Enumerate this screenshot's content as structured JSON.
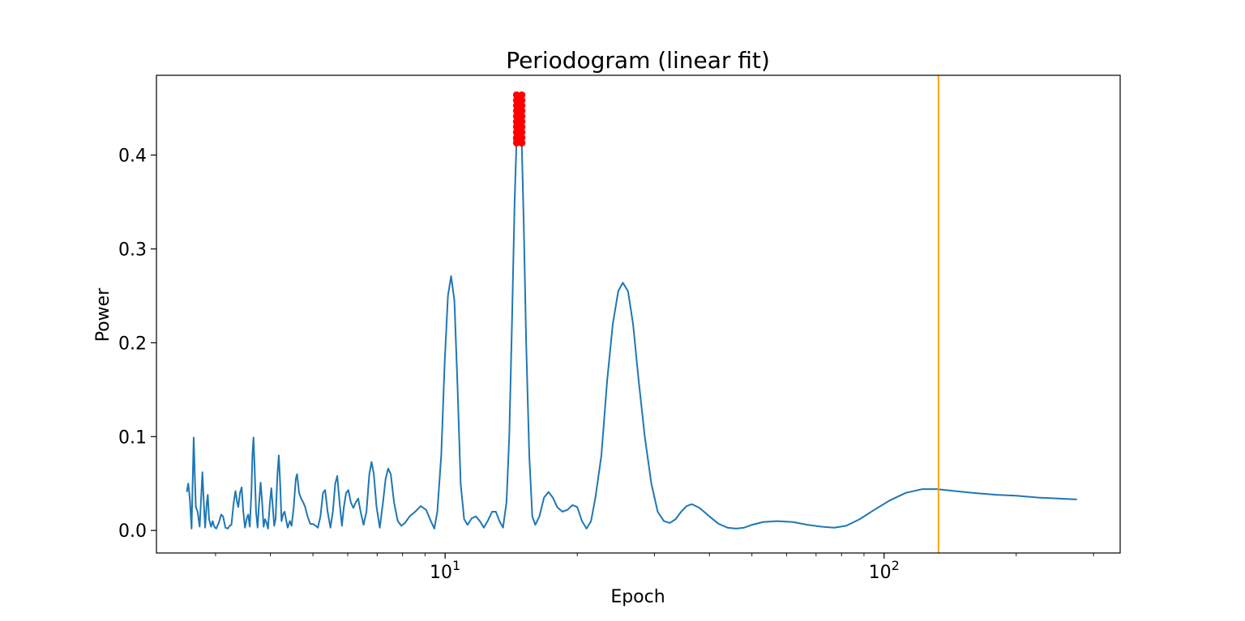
{
  "chart_data": {
    "type": "line",
    "title": "Periodogram (linear fit)",
    "xlabel": "Epoch",
    "ylabel": "Power",
    "xscale": "log",
    "xlim": [
      2.2,
      345
    ],
    "ylim": [
      -0.024,
      0.485
    ],
    "grid": false,
    "legend": "none",
    "x_ticks": [
      {
        "value": 10,
        "base": "10",
        "exp": "1"
      },
      {
        "value": 100,
        "base": "10",
        "exp": "2"
      }
    ],
    "y_ticks": [
      {
        "value": 0.0,
        "label": "0.0"
      },
      {
        "value": 0.1,
        "label": "0.1"
      },
      {
        "value": 0.2,
        "label": "0.2"
      },
      {
        "value": 0.3,
        "label": "0.3"
      },
      {
        "value": 0.4,
        "label": "0.4"
      }
    ],
    "series": [
      {
        "color": "#1f77b4",
        "points": [
          [
            2.58,
            0.041
          ],
          [
            2.6,
            0.05
          ],
          [
            2.62,
            0.035
          ],
          [
            2.645,
            0.002
          ],
          [
            2.66,
            0.05
          ],
          [
            2.675,
            0.099
          ],
          [
            2.69,
            0.06
          ],
          [
            2.705,
            0.025
          ],
          [
            2.73,
            0.02
          ],
          [
            2.76,
            0.004
          ],
          [
            2.785,
            0.04
          ],
          [
            2.8,
            0.062
          ],
          [
            2.82,
            0.03
          ],
          [
            2.84,
            0.003
          ],
          [
            2.865,
            0.03
          ],
          [
            2.88,
            0.038
          ],
          [
            2.9,
            0.012
          ],
          [
            2.93,
            0.004
          ],
          [
            2.955,
            0.01
          ],
          [
            2.98,
            0.004
          ],
          [
            3.01,
            0.002
          ],
          [
            3.05,
            0.008
          ],
          [
            3.09,
            0.017
          ],
          [
            3.12,
            0.015
          ],
          [
            3.16,
            0.003
          ],
          [
            3.2,
            0.002
          ],
          [
            3.23,
            0.005
          ],
          [
            3.26,
            0.006
          ],
          [
            3.3,
            0.03
          ],
          [
            3.33,
            0.042
          ],
          [
            3.36,
            0.03
          ],
          [
            3.38,
            0.025
          ],
          [
            3.41,
            0.04
          ],
          [
            3.44,
            0.046
          ],
          [
            3.47,
            0.02
          ],
          [
            3.5,
            0.003
          ],
          [
            3.53,
            0.012
          ],
          [
            3.56,
            0.017
          ],
          [
            3.59,
            0.004
          ],
          [
            3.62,
            0.04
          ],
          [
            3.64,
            0.08
          ],
          [
            3.66,
            0.099
          ],
          [
            3.68,
            0.07
          ],
          [
            3.71,
            0.02
          ],
          [
            3.74,
            0.003
          ],
          [
            3.77,
            0.03
          ],
          [
            3.8,
            0.051
          ],
          [
            3.83,
            0.03
          ],
          [
            3.86,
            0.004
          ],
          [
            3.89,
            0.012
          ],
          [
            3.92,
            0.008
          ],
          [
            3.95,
            0.002
          ],
          [
            3.99,
            0.03
          ],
          [
            4.02,
            0.045
          ],
          [
            4.05,
            0.025
          ],
          [
            4.08,
            0.005
          ],
          [
            4.11,
            0.012
          ],
          [
            4.15,
            0.06
          ],
          [
            4.18,
            0.08
          ],
          [
            4.21,
            0.05
          ],
          [
            4.24,
            0.01
          ],
          [
            4.28,
            0.018
          ],
          [
            4.31,
            0.02
          ],
          [
            4.34,
            0.012
          ],
          [
            4.38,
            0.003
          ],
          [
            4.43,
            0.01
          ],
          [
            4.47,
            0.005
          ],
          [
            4.52,
            0.025
          ],
          [
            4.57,
            0.055
          ],
          [
            4.6,
            0.06
          ],
          [
            4.65,
            0.04
          ],
          [
            4.7,
            0.034
          ],
          [
            4.75,
            0.03
          ],
          [
            4.8,
            0.025
          ],
          [
            4.86,
            0.015
          ],
          [
            4.93,
            0.007
          ],
          [
            5.0,
            0.007
          ],
          [
            5.07,
            0.005
          ],
          [
            5.13,
            0.003
          ],
          [
            5.2,
            0.015
          ],
          [
            5.27,
            0.04
          ],
          [
            5.33,
            0.043
          ],
          [
            5.4,
            0.02
          ],
          [
            5.48,
            0.003
          ],
          [
            5.55,
            0.02
          ],
          [
            5.62,
            0.05
          ],
          [
            5.68,
            0.058
          ],
          [
            5.75,
            0.03
          ],
          [
            5.82,
            0.005
          ],
          [
            5.88,
            0.025
          ],
          [
            5.95,
            0.04
          ],
          [
            6.02,
            0.043
          ],
          [
            6.1,
            0.03
          ],
          [
            6.18,
            0.024
          ],
          [
            6.26,
            0.03
          ],
          [
            6.34,
            0.034
          ],
          [
            6.42,
            0.02
          ],
          [
            6.52,
            0.006
          ],
          [
            6.62,
            0.02
          ],
          [
            6.72,
            0.06
          ],
          [
            6.8,
            0.073
          ],
          [
            6.88,
            0.06
          ],
          [
            6.98,
            0.025
          ],
          [
            7.1,
            0.003
          ],
          [
            7.22,
            0.03
          ],
          [
            7.32,
            0.055
          ],
          [
            7.42,
            0.066
          ],
          [
            7.52,
            0.06
          ],
          [
            7.65,
            0.03
          ],
          [
            7.8,
            0.01
          ],
          [
            7.95,
            0.005
          ],
          [
            8.1,
            0.008
          ],
          [
            8.3,
            0.015
          ],
          [
            8.55,
            0.02
          ],
          [
            8.8,
            0.026
          ],
          [
            9.05,
            0.022
          ],
          [
            9.28,
            0.01
          ],
          [
            9.45,
            0.002
          ],
          [
            9.6,
            0.02
          ],
          [
            9.8,
            0.08
          ],
          [
            9.98,
            0.18
          ],
          [
            10.15,
            0.25
          ],
          [
            10.32,
            0.271
          ],
          [
            10.5,
            0.245
          ],
          [
            10.68,
            0.15
          ],
          [
            10.85,
            0.05
          ],
          [
            11.05,
            0.012
          ],
          [
            11.25,
            0.006
          ],
          [
            11.5,
            0.013
          ],
          [
            11.75,
            0.015
          ],
          [
            12.0,
            0.01
          ],
          [
            12.25,
            0.003
          ],
          [
            12.5,
            0.01
          ],
          [
            12.8,
            0.02
          ],
          [
            13.05,
            0.02
          ],
          [
            13.3,
            0.01
          ],
          [
            13.55,
            0.003
          ],
          [
            13.8,
            0.03
          ],
          [
            14.0,
            0.1
          ],
          [
            14.2,
            0.22
          ],
          [
            14.4,
            0.35
          ],
          [
            14.6,
            0.44
          ],
          [
            14.75,
            0.465
          ],
          [
            14.9,
            0.44
          ],
          [
            15.1,
            0.33
          ],
          [
            15.3,
            0.2
          ],
          [
            15.55,
            0.08
          ],
          [
            15.8,
            0.015
          ],
          [
            16.05,
            0.006
          ],
          [
            16.4,
            0.015
          ],
          [
            16.8,
            0.035
          ],
          [
            17.2,
            0.041
          ],
          [
            17.6,
            0.035
          ],
          [
            18.0,
            0.025
          ],
          [
            18.5,
            0.02
          ],
          [
            19.0,
            0.022
          ],
          [
            19.5,
            0.027
          ],
          [
            20.0,
            0.025
          ],
          [
            20.5,
            0.01
          ],
          [
            21.0,
            0.002
          ],
          [
            21.5,
            0.01
          ],
          [
            22.0,
            0.035
          ],
          [
            22.7,
            0.08
          ],
          [
            23.4,
            0.16
          ],
          [
            24.1,
            0.22
          ],
          [
            24.8,
            0.255
          ],
          [
            25.4,
            0.264
          ],
          [
            26.1,
            0.255
          ],
          [
            26.8,
            0.22
          ],
          [
            27.6,
            0.16
          ],
          [
            28.5,
            0.1
          ],
          [
            29.5,
            0.05
          ],
          [
            30.5,
            0.02
          ],
          [
            31.5,
            0.01
          ],
          [
            32.5,
            0.008
          ],
          [
            33.5,
            0.012
          ],
          [
            34.5,
            0.02
          ],
          [
            35.5,
            0.026
          ],
          [
            36.5,
            0.028
          ],
          [
            38.0,
            0.024
          ],
          [
            40.0,
            0.015
          ],
          [
            42.0,
            0.007
          ],
          [
            44.0,
            0.003
          ],
          [
            46.0,
            0.002
          ],
          [
            48.0,
            0.003
          ],
          [
            50.0,
            0.006
          ],
          [
            53.0,
            0.009
          ],
          [
            57.0,
            0.01
          ],
          [
            62.0,
            0.009
          ],
          [
            67.0,
            0.006
          ],
          [
            72.0,
            0.004
          ],
          [
            77.0,
            0.003
          ],
          [
            82.0,
            0.005
          ],
          [
            88.0,
            0.012
          ],
          [
            95.0,
            0.022
          ],
          [
            103.0,
            0.032
          ],
          [
            112.0,
            0.04
          ],
          [
            122.0,
            0.044
          ],
          [
            132.0,
            0.044
          ],
          [
            145.0,
            0.042
          ],
          [
            160.0,
            0.04
          ],
          [
            180.0,
            0.038
          ],
          [
            200.0,
            0.037
          ],
          [
            225.0,
            0.035
          ],
          [
            250.0,
            0.034
          ],
          [
            275.0,
            0.033
          ]
        ]
      }
    ],
    "highlight_points": {
      "color": "#ff0000",
      "x_range": [
        14.55,
        14.95
      ],
      "y_range": [
        0.413,
        0.464
      ]
    },
    "vline": {
      "x": 133,
      "color": "#ffa500"
    }
  }
}
